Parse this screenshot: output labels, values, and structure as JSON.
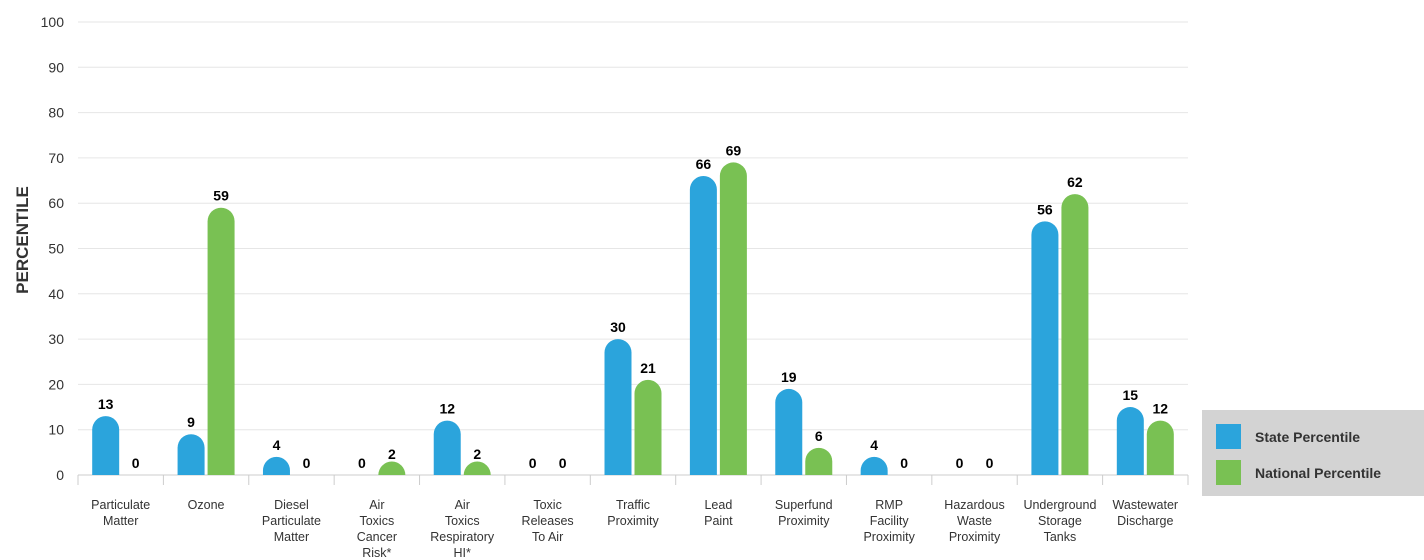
{
  "chart_data": {
    "type": "bar",
    "ylabel": "PERCENTILE",
    "ylim": [
      0,
      100
    ],
    "yticks": [
      0,
      10,
      20,
      30,
      40,
      50,
      60,
      70,
      80,
      90,
      100
    ],
    "grid": true,
    "legend_position": "bottom-right",
    "categories": [
      [
        "Particulate",
        "Matter"
      ],
      [
        "Ozone"
      ],
      [
        "Diesel",
        "Particulate",
        "Matter"
      ],
      [
        "Air",
        "Toxics",
        "Cancer",
        "Risk*"
      ],
      [
        "Air",
        "Toxics",
        "Respiratory",
        "HI*"
      ],
      [
        "Toxic",
        "Releases",
        "To Air"
      ],
      [
        "Traffic",
        "Proximity"
      ],
      [
        "Lead",
        "Paint"
      ],
      [
        "Superfund",
        "Proximity"
      ],
      [
        "RMP",
        "Facility",
        "Proximity"
      ],
      [
        "Hazardous",
        "Waste",
        "Proximity"
      ],
      [
        "Underground",
        "Storage",
        "Tanks"
      ],
      [
        "Wastewater",
        "Discharge"
      ]
    ],
    "series": [
      {
        "name": "State Percentile",
        "color": "#2ba4dc",
        "values": [
          13,
          9,
          4,
          0,
          12,
          0,
          30,
          66,
          19,
          4,
          0,
          56,
          15
        ]
      },
      {
        "name": "National Percentile",
        "color": "#79c153",
        "values": [
          0,
          59,
          0,
          2,
          2,
          0,
          21,
          69,
          6,
          0,
          0,
          62,
          12
        ]
      }
    ]
  },
  "legend": {
    "state_label": "State Percentile",
    "national_label": "National Percentile",
    "state_color": "#2ba4dc",
    "national_color": "#79c153"
  }
}
